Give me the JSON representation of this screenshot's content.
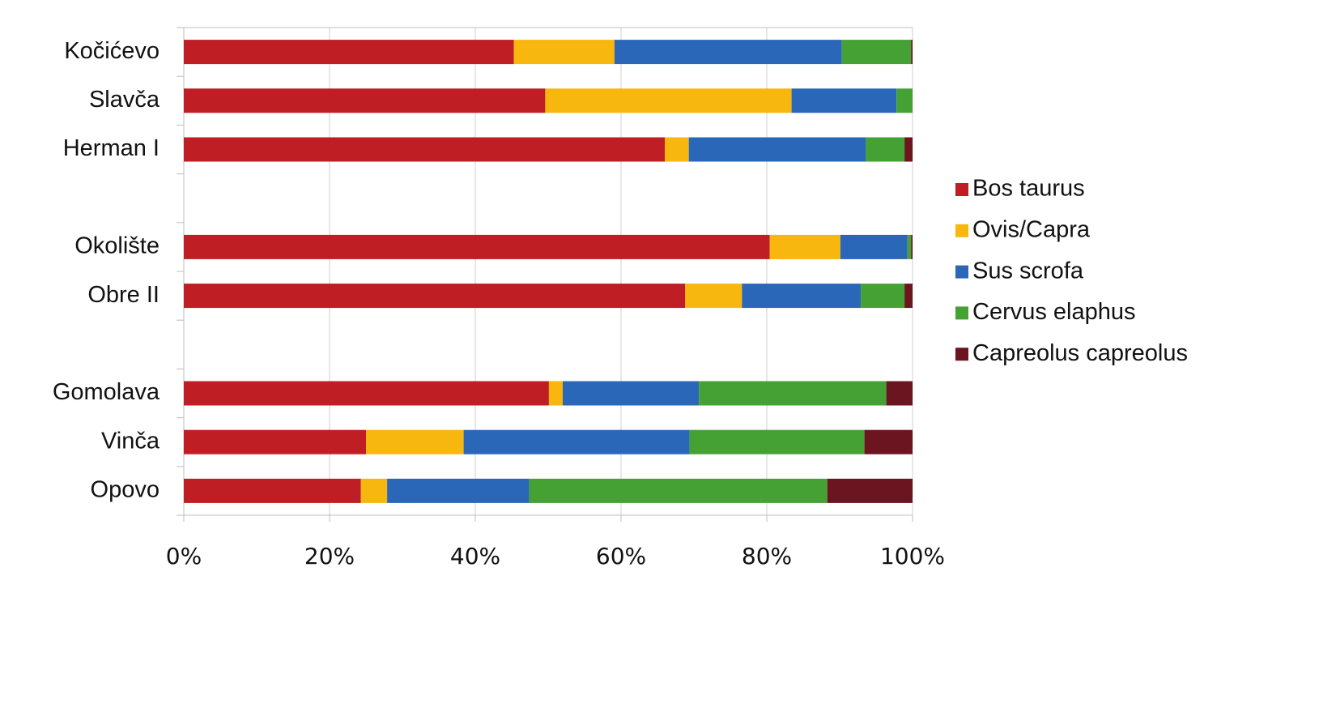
{
  "chart_data": {
    "type": "stacked_bar_horizontal",
    "categories": [
      "Kočićevo",
      "Slavča",
      "Herman I",
      null,
      "Okolište",
      "Obre II",
      null,
      "Gomolava",
      "Vinča",
      "Opovo"
    ],
    "series": [
      {
        "name": "Bos taurus",
        "color": "#be1e24",
        "values": [
          45.3,
          49.6,
          66.0,
          null,
          80.4,
          68.8,
          null,
          50.1,
          25.0,
          24.3
        ]
      },
      {
        "name": "Ovis/Capra",
        "color": "#f7b70f",
        "values": [
          13.8,
          33.8,
          3.3,
          null,
          9.7,
          7.8,
          null,
          1.9,
          13.4,
          3.6
        ]
      },
      {
        "name": "Sus scrofa",
        "color": "#2b67b8",
        "values": [
          31.2,
          14.4,
          24.3,
          null,
          9.2,
          16.3,
          null,
          18.7,
          31.0,
          19.5
        ]
      },
      {
        "name": "Cervus elaphus",
        "color": "#46a135",
        "values": [
          9.5,
          2.2,
          5.3,
          null,
          0.5,
          6.0,
          null,
          25.7,
          24.0,
          40.9
        ]
      },
      {
        "name": "Capreolus capreolus",
        "color": "#6b1520",
        "values": [
          0.2,
          0,
          1.1,
          null,
          0.2,
          1.1,
          null,
          3.6,
          6.6,
          11.7
        ]
      }
    ],
    "xlim": [
      0,
      100
    ],
    "xticks": [
      {
        "value": 0,
        "label": "0%"
      },
      {
        "value": 20,
        "label": "20%"
      },
      {
        "value": 40,
        "label": "40%"
      },
      {
        "value": 60,
        "label": "60%"
      },
      {
        "value": 80,
        "label": "80%"
      },
      {
        "value": 100,
        "label": "100%"
      }
    ],
    "grid": true,
    "legend": "right"
  }
}
